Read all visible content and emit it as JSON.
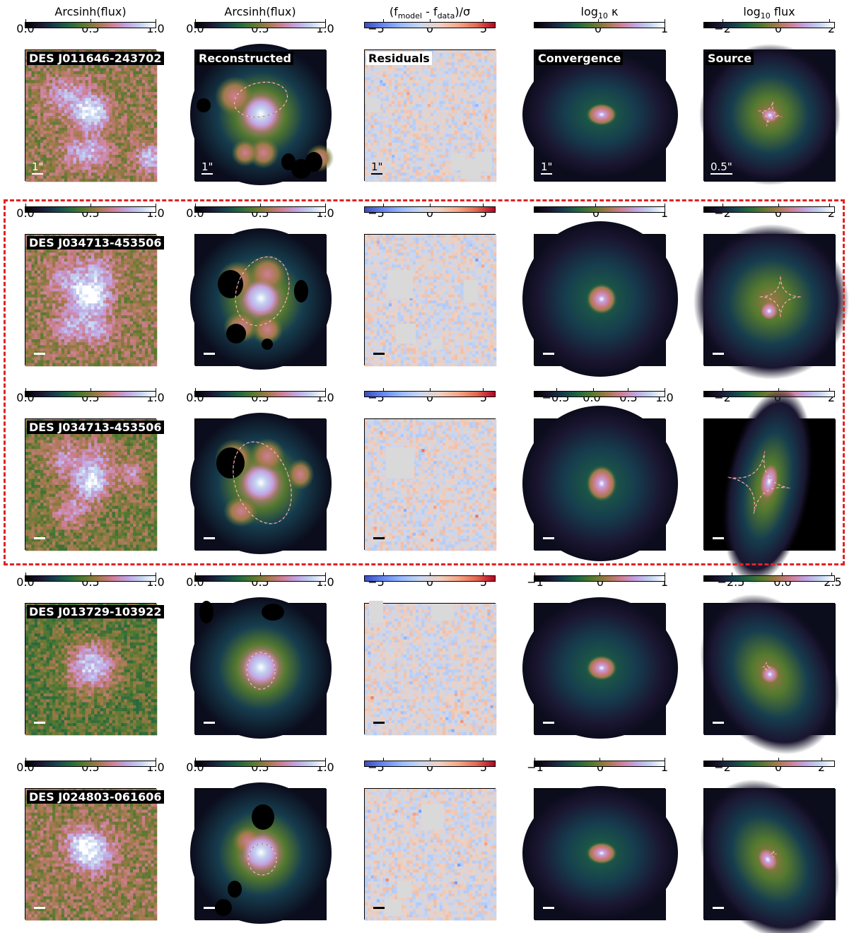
{
  "column_titles": [
    "Arcsinh(flux)",
    "Arcsinh(flux)",
    "(f_model - f_data)/σ",
    "log10 κ",
    "log10 flux"
  ],
  "colormaps": {
    "cubehelix": [
      "#000000",
      "#1a1530",
      "#163d4e",
      "#1f6642",
      "#54792f",
      "#a07949",
      "#d07e93",
      "#c1a3e2",
      "#c3d4f0",
      "#ffffff"
    ],
    "coolwarm": [
      "#3b4cc0",
      "#6788ee",
      "#9abbff",
      "#c9d7f0",
      "#edd1c2",
      "#f7a889",
      "#e26952",
      "#b40426"
    ]
  },
  "panel_labels": {
    "reconstructed": "Reconstructed",
    "residuals": "Residuals",
    "convergence": "Convergence",
    "source": "Source"
  },
  "rows": [
    {
      "name": "DES J011646-243702",
      "scales": [
        "1\"",
        "1\"",
        "1\"",
        "1\"",
        "0.5\""
      ],
      "ticks": [
        [
          "0.0",
          "0.5",
          "1.0"
        ],
        [
          "0.0",
          "0.5",
          "1.0"
        ],
        [
          "−5",
          "0",
          "5"
        ],
        [
          "0",
          "1"
        ],
        [
          "−2",
          "0",
          "2"
        ]
      ]
    },
    {
      "name": "DES J034713-453506",
      "ticks": [
        [
          "0.0",
          "0.5",
          "1.0"
        ],
        [
          "0.0",
          "0.5",
          "1.0"
        ],
        [
          "−5",
          "0",
          "5"
        ],
        [
          "0",
          "1"
        ],
        [
          "−2",
          "0",
          "2"
        ]
      ]
    },
    {
      "name": "DES J034713-453506",
      "ticks": [
        [
          "0.0",
          "0.5",
          "1.0"
        ],
        [
          "0.0",
          "0.5",
          "1.0"
        ],
        [
          "−5",
          "0",
          "5"
        ],
        [
          "−0.5",
          "0.0",
          "0.5",
          "1.0"
        ],
        [
          "−2",
          "0",
          "2"
        ]
      ]
    },
    {
      "name": "DES J013729-103922",
      "ticks": [
        [
          "0.0",
          "0.5",
          "1.0"
        ],
        [
          "0.0",
          "0.5",
          "1.0"
        ],
        [
          "−5",
          "0",
          "5"
        ],
        [
          "−1",
          "0",
          "1"
        ],
        [
          "−2.5",
          "0.0",
          "2.5"
        ]
      ]
    },
    {
      "name": "DES J024803-061606",
      "ticks": [
        [
          "0.0",
          "0.5",
          "1.0"
        ],
        [
          "0.0",
          "0.5",
          "1.0"
        ],
        [
          "−5",
          "0",
          "5"
        ],
        [
          "−1",
          "0",
          "1"
        ],
        [
          "−2",
          "0",
          "2"
        ]
      ]
    }
  ]
}
